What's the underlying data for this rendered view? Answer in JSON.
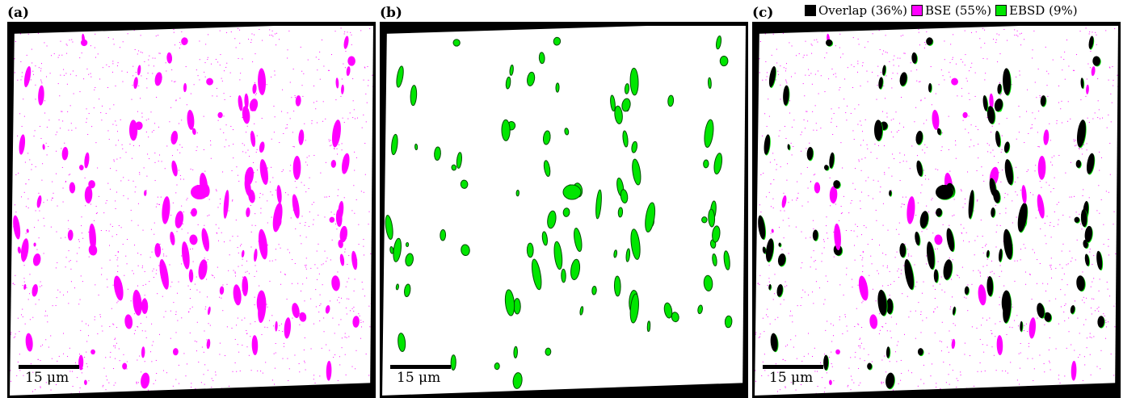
{
  "colors": {
    "overlap": "#000000",
    "bse": "#ff00ff",
    "ebsd": "#00e600",
    "ebsd_outline": "#004d00",
    "frame": "#000000"
  },
  "panels": [
    {
      "label": "(a)",
      "kind": "bse",
      "scalebar": "15 μm"
    },
    {
      "label": "(b)",
      "kind": "ebsd",
      "scalebar": "15 μm"
    },
    {
      "label": "(c)",
      "kind": "overlay",
      "scalebar": "15 μm"
    }
  ],
  "legend": [
    {
      "label": "Overlap (36%)",
      "color": "#000000"
    },
    {
      "label": "BSE (55%)",
      "color": "#ff00ff"
    },
    {
      "label": "EBSD (9%)",
      "color": "#00e600"
    }
  ]
}
